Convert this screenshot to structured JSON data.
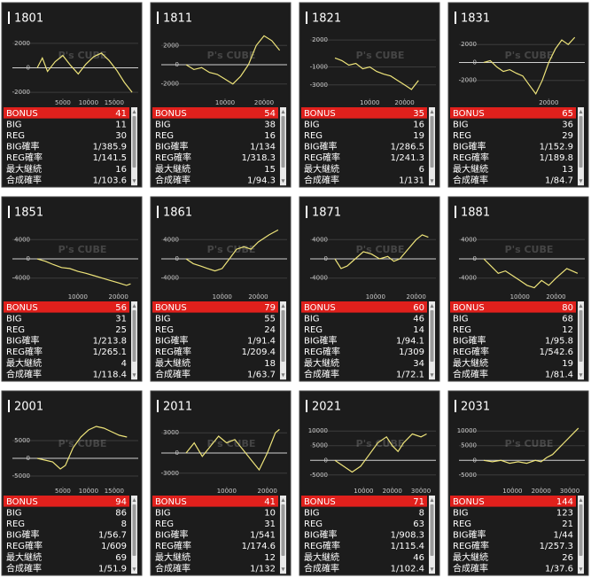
{
  "watermark": "P's CUBE",
  "row_labels": [
    "BONUS",
    "BIG",
    "REG",
    "BIG確率",
    "REG確率",
    "最大継続",
    "合成確率"
  ],
  "panels": [
    {
      "title": "1801",
      "chart": {
        "type": "line",
        "color": "#eee47a",
        "xlim": [
          0,
          19000
        ],
        "ylim": [
          -2500,
          3000
        ],
        "xticks": [
          5000,
          10000,
          15000
        ],
        "yticks": [
          2000,
          0,
          -2000
        ],
        "x": [
          0,
          1000,
          2000,
          3500,
          5000,
          6500,
          8000,
          9500,
          11000,
          12500,
          14000,
          15500,
          17000,
          18500
        ],
        "values": [
          0,
          800,
          -300,
          500,
          1000,
          200,
          -500,
          300,
          900,
          1200,
          600,
          -200,
          -1200,
          -2000
        ]
      },
      "stats": [
        41,
        11,
        30,
        "1/385.9",
        "1/141.5",
        16,
        "1/103.6"
      ]
    },
    {
      "title": "1811",
      "chart": {
        "type": "line",
        "color": "#eee47a",
        "xlim": [
          0,
          25000
        ],
        "ylim": [
          -3500,
          3500
        ],
        "xticks": [
          10000,
          20000
        ],
        "yticks": [
          2000,
          0,
          -2000
        ],
        "x": [
          0,
          2000,
          4000,
          6000,
          8000,
          10000,
          12000,
          14000,
          16000,
          18000,
          20000,
          22000,
          24000
        ],
        "values": [
          0,
          -500,
          -300,
          -800,
          -1000,
          -1500,
          -2000,
          -1200,
          0,
          2000,
          3000,
          2500,
          1500
        ]
      },
      "stats": [
        54,
        38,
        16,
        "1/134",
        "1/318.3",
        15,
        "1/94.3"
      ]
    },
    {
      "title": "1821",
      "chart": {
        "type": "line",
        "color": "#eee47a",
        "xlim": [
          0,
          28000
        ],
        "ylim": [
          -4500,
          3000
        ],
        "xticks": [
          10000,
          20000
        ],
        "yticks": [
          2000,
          -1000,
          -3000
        ],
        "x": [
          0,
          2000,
          4000,
          6000,
          8000,
          10000,
          12000,
          14000,
          16000,
          18000,
          20000,
          22000,
          24000
        ],
        "values": [
          0,
          -300,
          -800,
          -600,
          -1200,
          -1000,
          -1500,
          -1800,
          -2000,
          -2500,
          -3000,
          -3500,
          -2500
        ]
      },
      "stats": [
        35,
        16,
        19,
        "1/286.5",
        "1/241.3",
        6,
        "1/131"
      ]
    },
    {
      "title": "1831",
      "chart": {
        "type": "line",
        "color": "#eee47a",
        "xlim": [
          0,
          30000
        ],
        "ylim": [
          -4000,
          3500
        ],
        "xticks": [
          20000
        ],
        "yticks": [
          2000,
          0,
          -2000
        ],
        "x": [
          0,
          2000,
          4000,
          6000,
          8000,
          10000,
          12000,
          14000,
          16000,
          18000,
          20000,
          22000,
          24000,
          26000,
          28000
        ],
        "values": [
          0,
          200,
          -500,
          -1000,
          -800,
          -1200,
          -1500,
          -2500,
          -3500,
          -2000,
          0,
          1500,
          2500,
          2000,
          2800
        ]
      },
      "stats": [
        65,
        36,
        29,
        "1/152.9",
        "1/189.8",
        13,
        "1/84.7"
      ]
    },
    {
      "title": "1851",
      "chart": {
        "type": "line",
        "color": "#eee47a",
        "xlim": [
          0,
          24000
        ],
        "ylim": [
          -7000,
          7000
        ],
        "xticks": [
          10000,
          20000
        ],
        "yticks": [
          4000,
          0,
          -4000
        ],
        "x": [
          0,
          2000,
          4000,
          6000,
          8000,
          10000,
          12000,
          14000,
          16000,
          18000,
          20000,
          22000,
          23000
        ],
        "values": [
          0,
          -500,
          -1200,
          -1800,
          -2000,
          -2600,
          -3000,
          -3500,
          -4000,
          -4500,
          -5000,
          -5500,
          -5200
        ]
      },
      "stats": [
        56,
        31,
        25,
        "1/213.8",
        "1/265.1",
        4,
        "1/118.4"
      ]
    },
    {
      "title": "1861",
      "chart": {
        "type": "line",
        "color": "#eee47a",
        "xlim": [
          0,
          27000
        ],
        "ylim": [
          -7000,
          7000
        ],
        "xticks": [
          10000,
          20000
        ],
        "yticks": [
          4000,
          0,
          -4000
        ],
        "x": [
          0,
          2000,
          4000,
          6000,
          8000,
          10000,
          12000,
          14000,
          16000,
          18000,
          20000,
          23000,
          25500
        ],
        "values": [
          0,
          -1000,
          -1500,
          -2000,
          -2500,
          -2000,
          0,
          2000,
          2500,
          2000,
          3500,
          5000,
          6000
        ]
      },
      "stats": [
        79,
        55,
        24,
        "1/91.4",
        "1/209.4",
        18,
        "1/63.7"
      ]
    },
    {
      "title": "1871",
      "chart": {
        "type": "line",
        "color": "#eee47a",
        "xlim": [
          0,
          24000
        ],
        "ylim": [
          -7000,
          7000
        ],
        "xticks": [
          10000,
          20000
        ],
        "yticks": [
          4000,
          0,
          -4000
        ],
        "x": [
          0,
          1500,
          3000,
          5000,
          7000,
          9000,
          11000,
          13000,
          14500,
          16000,
          18000,
          20000,
          21500,
          23000
        ],
        "values": [
          0,
          -2000,
          -1500,
          0,
          1500,
          1000,
          0,
          500,
          -500,
          0,
          2000,
          4000,
          5000,
          4500
        ]
      },
      "stats": [
        60,
        46,
        14,
        "1/94.1",
        "1/309",
        34,
        "1/72.1"
      ]
    },
    {
      "title": "1881",
      "chart": {
        "type": "line",
        "color": "#eee47a",
        "xlim": [
          0,
          27000
        ],
        "ylim": [
          -7000,
          7000
        ],
        "xticks": [
          10000,
          20000
        ],
        "yticks": [
          4000,
          0,
          -4000
        ],
        "x": [
          0,
          2000,
          4000,
          6000,
          8000,
          10000,
          12000,
          14000,
          16000,
          18000,
          20000,
          23000,
          26000
        ],
        "values": [
          0,
          -1500,
          -3000,
          -2500,
          -3500,
          -4500,
          -5500,
          -6000,
          -4500,
          -5500,
          -4000,
          -2000,
          -3000
        ]
      },
      "stats": [
        80,
        68,
        12,
        "1/95.8",
        "1/542.6",
        19,
        "1/81.4"
      ]
    },
    {
      "title": "2001",
      "chart": {
        "type": "line",
        "color": "#eee47a",
        "xlim": [
          0,
          19000
        ],
        "ylim": [
          -8000,
          11000
        ],
        "xticks": [
          5000,
          10000,
          15000
        ],
        "yticks": [
          5000,
          0,
          -5000
        ],
        "x": [
          0,
          1500,
          3000,
          4500,
          5500,
          7000,
          8500,
          10000,
          11500,
          13000,
          14500,
          16000,
          17500
        ],
        "values": [
          0,
          -500,
          -1000,
          -3000,
          -2000,
          3000,
          6000,
          8000,
          9000,
          8500,
          7500,
          6500,
          6000
        ]
      },
      "stats": [
        94,
        86,
        8,
        "1/56.7",
        "1/609",
        69,
        "1/51.9"
      ]
    },
    {
      "title": "2011",
      "chart": {
        "type": "line",
        "color": "#eee47a",
        "xlim": [
          0,
          24000
        ],
        "ylim": [
          -5000,
          5000
        ],
        "xticks": [
          10000,
          20000
        ],
        "yticks": [
          3000,
          0,
          -3000
        ],
        "x": [
          0,
          2000,
          4000,
          6000,
          8000,
          10000,
          12000,
          14000,
          16000,
          18000,
          20000,
          22000,
          23000
        ],
        "values": [
          0,
          1500,
          -500,
          1000,
          2500,
          1500,
          2000,
          500,
          -1000,
          -2500,
          0,
          3000,
          3500
        ]
      },
      "stats": [
        41,
        10,
        31,
        "1/541",
        "1/174.6",
        12,
        "1/132"
      ]
    },
    {
      "title": "2021",
      "chart": {
        "type": "line",
        "color": "#eee47a",
        "xlim": [
          0,
          34000
        ],
        "ylim": [
          -9000,
          14000
        ],
        "xticks": [
          10000,
          20000,
          30000
        ],
        "yticks": [
          10000,
          5000,
          0,
          -5000
        ],
        "x": [
          0,
          3000,
          6000,
          9000,
          12000,
          15000,
          18000,
          20000,
          22000,
          24000,
          27000,
          30000,
          32000
        ],
        "values": [
          0,
          -2000,
          -4000,
          -2000,
          2000,
          6000,
          8000,
          5000,
          3000,
          6000,
          9000,
          8000,
          9000
        ]
      },
      "stats": [
        71,
        8,
        63,
        "1/908.3",
        "1/115.4",
        46,
        "1/102.4"
      ]
    },
    {
      "title": "2031",
      "chart": {
        "type": "line",
        "color": "#eee47a",
        "xlim": [
          0,
          34000
        ],
        "ylim": [
          -9000,
          14000
        ],
        "xticks": [
          10000,
          20000,
          30000
        ],
        "yticks": [
          10000,
          5000,
          0,
          -5000
        ],
        "x": [
          0,
          3000,
          6000,
          9000,
          12000,
          15000,
          18000,
          20000,
          22000,
          24000,
          27000,
          30000,
          33000
        ],
        "values": [
          0,
          -500,
          0,
          -1000,
          -500,
          -1000,
          0,
          -500,
          1000,
          2000,
          5000,
          8000,
          11000
        ]
      },
      "stats": [
        144,
        123,
        21,
        "1/44",
        "1/257.3",
        26,
        "1/37.6"
      ]
    }
  ]
}
